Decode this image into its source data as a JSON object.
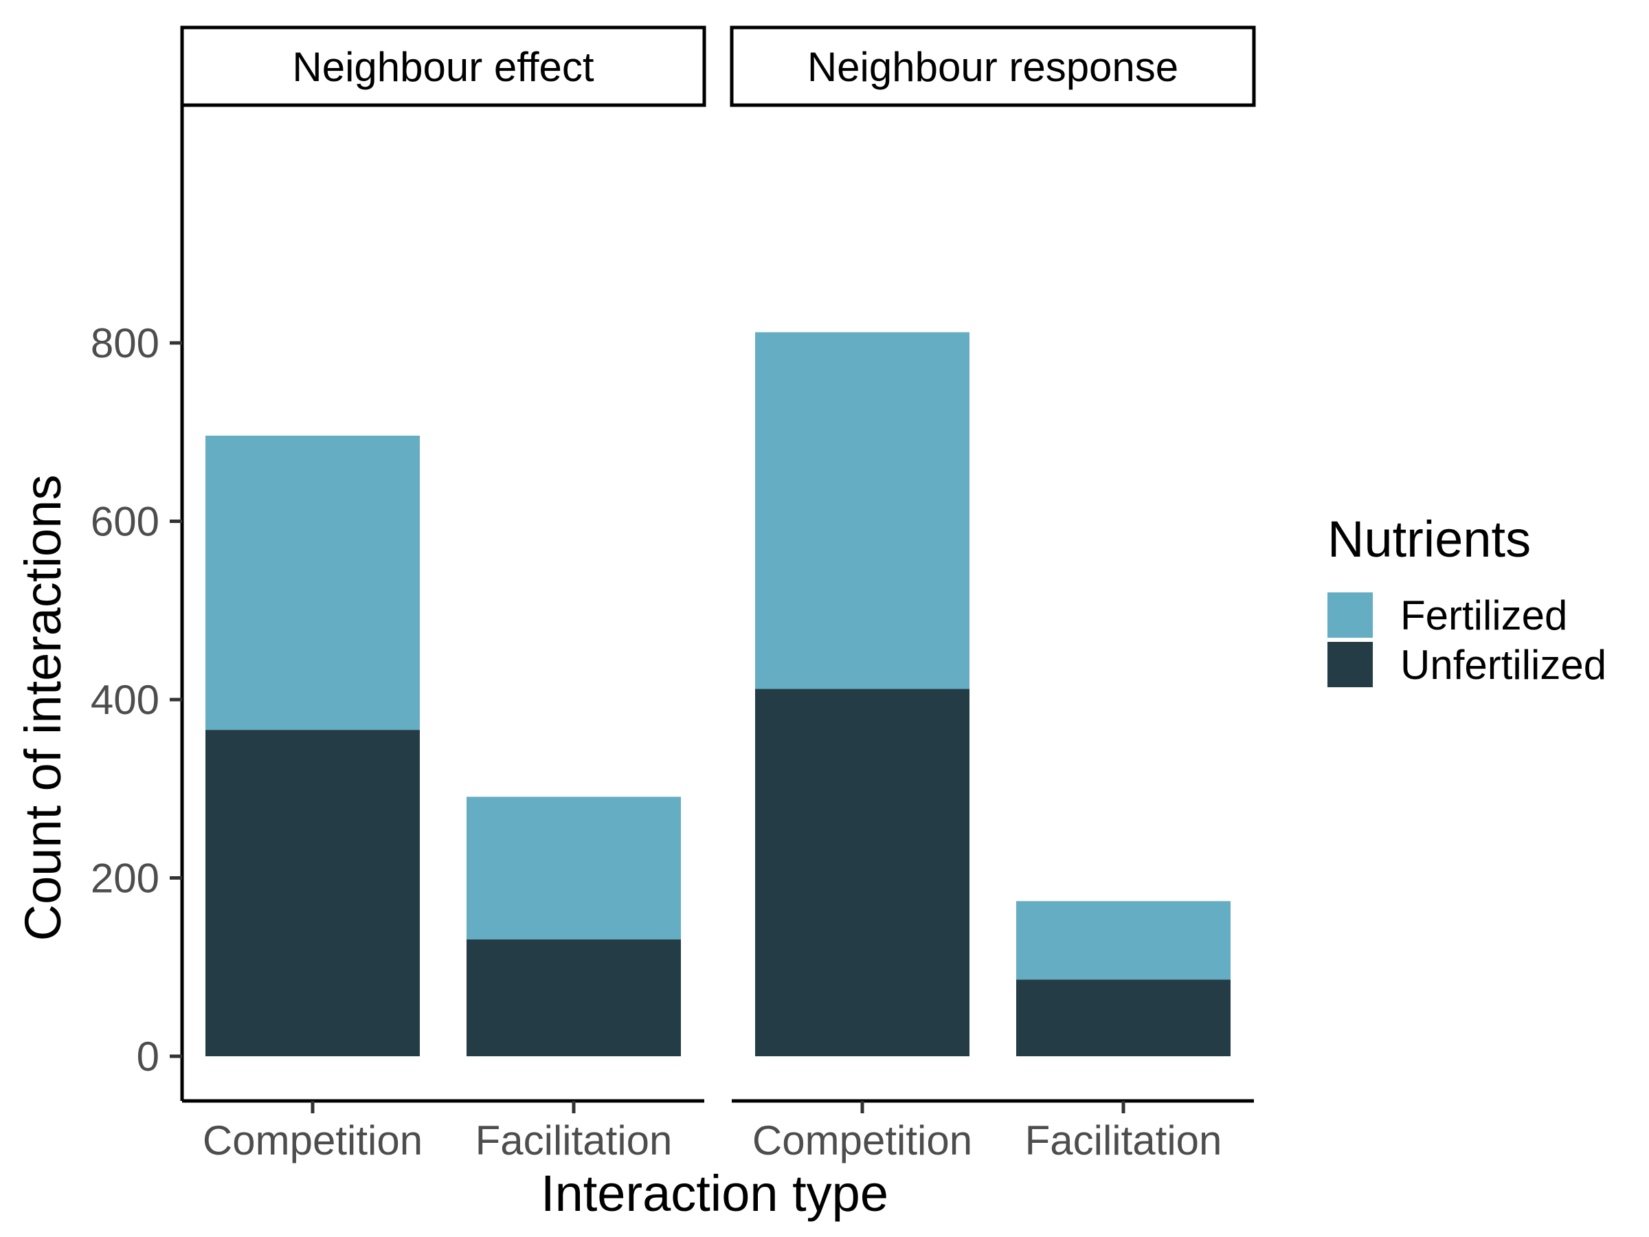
{
  "chart_data": {
    "type": "bar",
    "stacked": true,
    "facets": [
      {
        "label": "Neighbour effect",
        "categories": [
          "Competition",
          "Facilitation"
        ],
        "series": [
          {
            "name": "Unfertilized",
            "values": [
              366,
              131
            ]
          },
          {
            "name": "Fertilized",
            "values": [
              330,
              160
            ]
          }
        ]
      },
      {
        "label": "Neighbour response",
        "categories": [
          "Competition",
          "Facilitation"
        ],
        "series": [
          {
            "name": "Unfertilized",
            "values": [
              412,
              86
            ]
          },
          {
            "name": "Fertilized",
            "values": [
              400,
              88
            ]
          }
        ]
      }
    ],
    "xlabel": "Interaction type",
    "ylabel": "Count of interactions",
    "ylim": [
      0,
      850
    ],
    "yticks": [
      0,
      200,
      400,
      600,
      800
    ],
    "grid": false,
    "legend": {
      "title": "Nutrients",
      "placement": "right",
      "items": [
        {
          "name": "Fertilized",
          "color": "#65adc3"
        },
        {
          "name": "Unfertilized",
          "color": "#243c45"
        }
      ]
    },
    "colors": {
      "Fertilized": "#65adc3",
      "Unfertilized": "#243c45"
    }
  }
}
